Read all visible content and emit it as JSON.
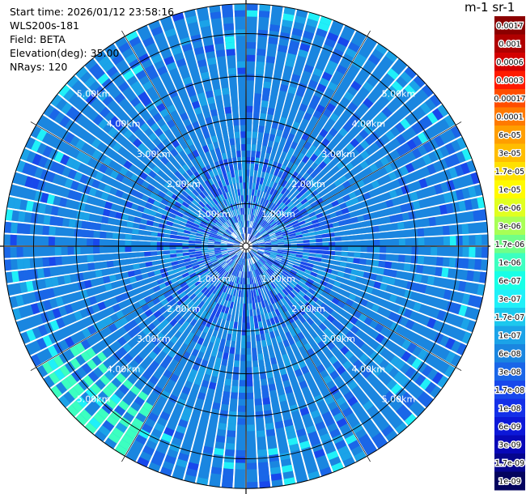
{
  "info": {
    "start_time_label": "Start time:",
    "start_time": "2026/01/12 23:58:16",
    "station": "WLS200s-181",
    "field_label": "Field:",
    "field": "BETA",
    "elevation_label": "Elevation(deg):",
    "elevation": "35.00",
    "nrays_label": "NRays:",
    "nrays": "120"
  },
  "colorbar": {
    "title": "m-1 sr-1",
    "levels": [
      {
        "label": "0.0017",
        "color": "#8b0000"
      },
      {
        "label": "0.001",
        "color": "#b00000"
      },
      {
        "label": "0.0006",
        "color": "#d40000"
      },
      {
        "label": "0.0003",
        "color": "#ff1a00"
      },
      {
        "label": "0.00017",
        "color": "#ff4d00"
      },
      {
        "label": "0.0001",
        "color": "#ff7a00"
      },
      {
        "label": "6e-05",
        "color": "#ff9e00"
      },
      {
        "label": "3e-05",
        "color": "#ffbd00"
      },
      {
        "label": "1.7e-05",
        "color": "#ffe000"
      },
      {
        "label": "1e-05",
        "color": "#fffa00"
      },
      {
        "label": "6e-06",
        "color": "#e0ff20"
      },
      {
        "label": "3e-06",
        "color": "#a8ff55"
      },
      {
        "label": "1.7e-06",
        "color": "#70ff88"
      },
      {
        "label": "1e-06",
        "color": "#3cffc0"
      },
      {
        "label": "6e-07",
        "color": "#18ffe6"
      },
      {
        "label": "3e-07",
        "color": "#20f0f8"
      },
      {
        "label": "1.7e-07",
        "color": "#1cc8ee"
      },
      {
        "label": "1e-07",
        "color": "#1ba3e8"
      },
      {
        "label": "6e-08",
        "color": "#1a86e0"
      },
      {
        "label": "3e-08",
        "color": "#1a66e8"
      },
      {
        "label": "1.7e-08",
        "color": "#1848ec"
      },
      {
        "label": "1e-08",
        "color": "#1430e8"
      },
      {
        "label": "6e-09",
        "color": "#0c18d8"
      },
      {
        "label": "3e-09",
        "color": "#0808b8"
      },
      {
        "label": "1.7e-09",
        "color": "#06068e"
      },
      {
        "label": "1e-09",
        "color": "#04045e"
      }
    ]
  },
  "chart_data": {
    "type": "heatmap",
    "projection": "polar-ppi",
    "field": "BETA",
    "units": "m-1 sr-1",
    "nrays": 120,
    "range_rings_km": [
      1,
      2,
      3,
      4,
      5
    ],
    "ring_labels": [
      "1.00km",
      "2.00km",
      "3.00km",
      "4.00km",
      "5.00km"
    ],
    "max_range_km": 5.7,
    "azimuth_spokes_deg": [
      0,
      30,
      60,
      90,
      120,
      150,
      180,
      210,
      240,
      270,
      300,
      330
    ],
    "dominant_level": "6e-08",
    "secondary_levels": [
      "3e-08",
      "1e-07",
      "1.7e-08"
    ],
    "enhanced_region": {
      "azimuth_deg_range": [
        210,
        240
      ],
      "range_km": [
        4.2,
        5.7
      ],
      "level": "1e-06"
    },
    "colorbar_min": "1e-09",
    "colorbar_max": "0.0017"
  }
}
